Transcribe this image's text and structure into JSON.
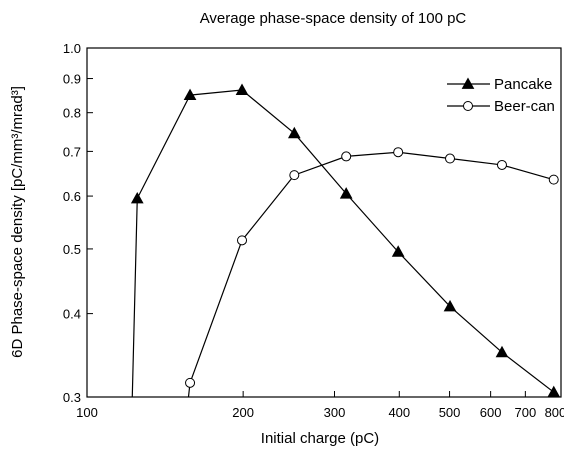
{
  "chart_data": {
    "type": "line",
    "title": "Average phase-space density of 100 pC",
    "xlabel": "Initial charge (pC)",
    "ylabel": "6D Phase-space density [pC/mm³/mrad³]",
    "xscale": "log",
    "yscale": "log",
    "xlim": [
      100,
      820
    ],
    "ylim": [
      0.3,
      1.0
    ],
    "xticks": [
      100,
      200,
      300,
      400,
      500,
      600,
      700,
      800
    ],
    "xtick_labels": [
      "100",
      "200",
      "300",
      "400",
      "500",
      "600",
      "700",
      "800"
    ],
    "yticks": [
      0.3,
      0.4,
      0.5,
      0.6,
      0.7,
      0.8,
      0.9,
      1.0
    ],
    "ytick_labels": [
      "0.3",
      "0.4",
      "0.5",
      "0.6",
      "0.7",
      "0.8",
      "0.9",
      "1.0"
    ],
    "grid": false,
    "legend_position": "top-right",
    "series": [
      {
        "name": "Pancake",
        "marker": "filled-triangle",
        "color": "#000000",
        "x": [
          125,
          158,
          199,
          251,
          316,
          398,
          501,
          631,
          794
        ],
        "y": [
          0.595,
          0.85,
          0.865,
          0.745,
          0.605,
          0.495,
          0.41,
          0.35,
          0.305
        ]
      },
      {
        "name": "Beer-can",
        "marker": "open-circle",
        "color": "#000000",
        "x": [
          158,
          199,
          251,
          316,
          398,
          501,
          631,
          794
        ],
        "y": [
          0.315,
          0.515,
          0.645,
          0.688,
          0.698,
          0.683,
          0.668,
          0.635
        ]
      }
    ]
  }
}
